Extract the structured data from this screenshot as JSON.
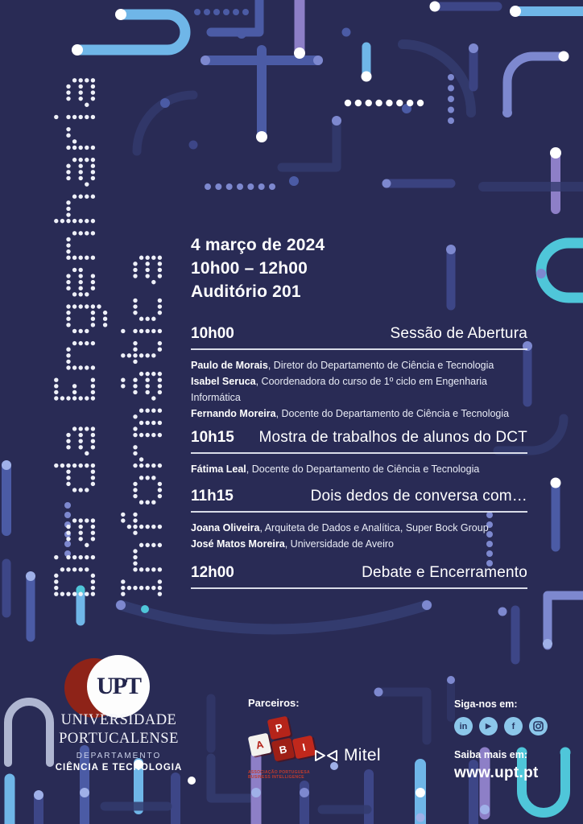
{
  "poster": {
    "vertical_title": {
      "line1": "Dia da Engenharia",
      "line2": "Informática"
    },
    "event": {
      "date": "4 março de 2024",
      "time": "10h00 – 12h00",
      "location": "Auditório 201"
    },
    "schedule": [
      {
        "time": "10h00",
        "title": "Sessão de Abertura",
        "speakers": [
          {
            "name": "Paulo de Morais",
            "role": ", Diretor do Departamento de Ciência e Tecnologia"
          },
          {
            "name": "Isabel Seruca",
            "role": ", Coordenadora do curso de 1º ciclo em Engenharia Informática"
          },
          {
            "name": "Fernando Moreira",
            "role": ", Docente do Departamento de Ciência e Tecnologia"
          }
        ]
      },
      {
        "time": "10h15",
        "title": "Mostra de trabalhos de alunos do DCT",
        "speakers": [
          {
            "name": "Fátima Leal",
            "role": ", Docente do Departamento de Ciência e Tecnologia"
          }
        ]
      },
      {
        "time": "11h15",
        "title": "Dois dedos de conversa com…",
        "speakers": [
          {
            "name": "Joana Oliveira",
            "role": ", Arquiteta de Dados e Analítica, Super Bock Group"
          },
          {
            "name": "José Matos Moreira",
            "role": ", Universidade de Aveiro"
          }
        ]
      },
      {
        "time": "12h00",
        "title": "Debate e Encerramento",
        "speakers": []
      }
    ],
    "footer": {
      "university": {
        "logo_text": "UPT",
        "name_line1": "UNIVERSIDADE",
        "name_line2": "PORTUCALENSE",
        "dept_line1": "DEPARTAMENTO",
        "dept_line2": "CIÊNCIA E TECNOLOGIA"
      },
      "partners": {
        "label": "Parceiros:",
        "api_letters": [
          "A",
          "P",
          "B",
          "I"
        ],
        "api_caption_line1": "ASSOCIAÇÃO PORTUGUESA",
        "api_caption_line2": "BUSINESS INTELLIGENCE",
        "mitel_label": "Mitel"
      },
      "social": {
        "follow_label": "Siga-nos em:",
        "icons": [
          "linkedin",
          "youtube",
          "facebook",
          "instagram"
        ],
        "icon_glyphs": {
          "linkedin": "in",
          "facebook": "f"
        },
        "more_label": "Saiba mais em:",
        "website": "www.upt.pt"
      }
    },
    "colors": {
      "background": "#292b55",
      "accent_red": "#b5241a",
      "logo_maroon": "#8e2318",
      "light_blue": "#6fb6e8",
      "cyan": "#4fc6d9",
      "purple": "#8d7fc7",
      "periwinkle": "#7d88cf",
      "white": "#ffffff"
    }
  }
}
